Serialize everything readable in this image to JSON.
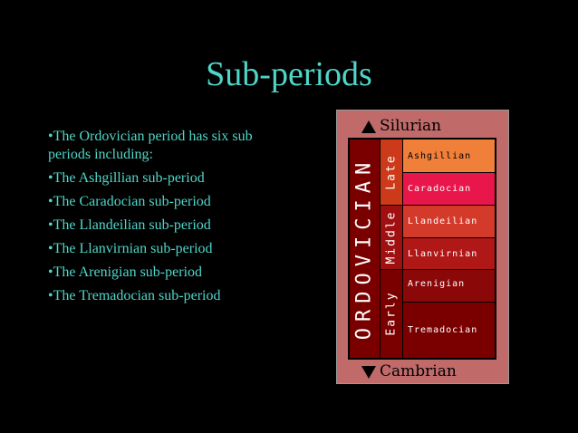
{
  "slide": {
    "title": "Sub-periods",
    "bullets": [
      {
        "marker": "•",
        "text": "The  Ordovician period has six sub periods including:"
      },
      {
        "marker": "•",
        "text": "The Ashgillian sub-period"
      },
      {
        "marker": "•",
        "text": "The Caradocian sub-period"
      },
      {
        "marker": "•",
        "text": "The Llandeilian sub-period"
      },
      {
        "marker": "•",
        "text": "The Llanvirnian sub-period"
      },
      {
        "marker": "•",
        "text": "The Arenigian sub-period"
      },
      {
        "marker": "•",
        "text": "The Tremadocian sub-period"
      }
    ]
  },
  "diagram": {
    "above_label": "Silurian",
    "below_label": "Cambrian",
    "period": "ORDOVICIAN",
    "epochs": {
      "late": "Late",
      "middle": "Middle",
      "early": "Early"
    },
    "stages": [
      "Ashgillian",
      "Caradocian",
      "Llandeilian",
      "Llanvirnian",
      "Arenigian",
      "Tremadocian"
    ],
    "colors": {
      "panel": "#c16a6a",
      "period": "#7a0000",
      "late": "#cc3a1a",
      "middle": "#a01010",
      "early": "#7a0000",
      "ashgillian": "#f07f3a",
      "caradocian": "#e8164a",
      "llandeilian": "#d43a2a",
      "llanvirnian": "#b01818",
      "arenigian": "#8a0808",
      "tremadocian": "#7a0000"
    }
  }
}
